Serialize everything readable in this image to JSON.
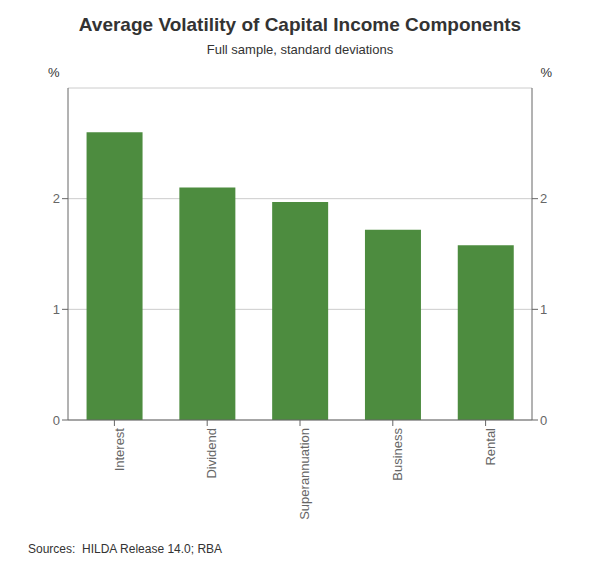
{
  "chart_data": {
    "type": "bar",
    "title": "Average Volatility of Capital Income Components",
    "subtitle": "Full sample, standard deviations",
    "categories": [
      "Interest",
      "Dividend",
      "Superannuation",
      "Business",
      "Rental"
    ],
    "values": [
      2.6,
      2.1,
      1.97,
      1.72,
      1.58
    ],
    "color": "#4d8c3f",
    "ylim": [
      0,
      3.0
    ],
    "yticks": [
      0,
      1,
      2
    ],
    "ylabel": "%",
    "y2lim": [
      0,
      3.0
    ],
    "y2ticks": [
      0,
      1,
      2
    ],
    "y2label": "%",
    "grid": true,
    "source": "Sources:  HILDA Release 14.0; RBA"
  }
}
